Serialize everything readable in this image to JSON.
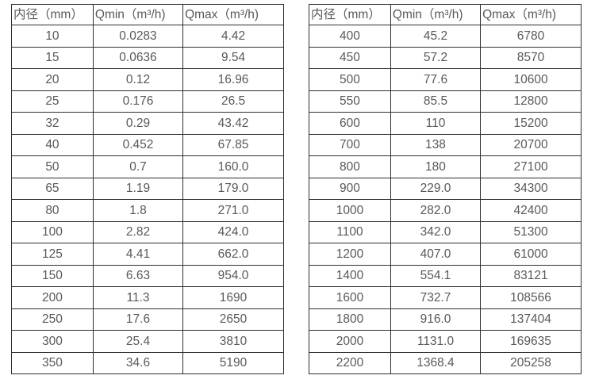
{
  "colors": {
    "background": "#ffffff",
    "border": "#2f2f2f",
    "text": "#595959"
  },
  "left_table": {
    "headers": {
      "diameter": "内径（mm）",
      "qmin": "Qmin（m³/h)",
      "qmax": "Qmax（m³/h)"
    },
    "rows": [
      [
        "10",
        "0.0283",
        "4.42"
      ],
      [
        "15",
        "0.0636",
        "9.54"
      ],
      [
        "20",
        "0.12",
        "16.96"
      ],
      [
        "25",
        "0.176",
        "26.5"
      ],
      [
        "32",
        "0.29",
        "43.42"
      ],
      [
        "40",
        "0.452",
        "67.85"
      ],
      [
        "50",
        "0.7",
        "160.0"
      ],
      [
        "65",
        "1.19",
        "179.0"
      ],
      [
        "80",
        "1.8",
        "271.0"
      ],
      [
        "100",
        "2.82",
        "424.0"
      ],
      [
        "125",
        "4.41",
        "662.0"
      ],
      [
        "150",
        "6.63",
        "954.0"
      ],
      [
        "200",
        "11.3",
        "1690"
      ],
      [
        "250",
        "17.6",
        "2650"
      ],
      [
        "300",
        "25.4",
        "3810"
      ],
      [
        "350",
        "34.6",
        "5190"
      ]
    ]
  },
  "right_table": {
    "headers": {
      "diameter": "内径（mm）",
      "qmin": "Qmin（m³/h)",
      "qmax": "Qmax（m³/h)"
    },
    "rows": [
      [
        "400",
        "45.2",
        "6780"
      ],
      [
        "450",
        "57.2",
        "8570"
      ],
      [
        "500",
        "77.6",
        "10600"
      ],
      [
        "550",
        "85.5",
        "12800"
      ],
      [
        "600",
        "110",
        "15200"
      ],
      [
        "700",
        "138",
        "20700"
      ],
      [
        "800",
        "180",
        "27100"
      ],
      [
        "900",
        "229.0",
        "34300"
      ],
      [
        "1000",
        "282.0",
        "42400"
      ],
      [
        "1100",
        "342.0",
        "51300"
      ],
      [
        "1200",
        "407.0",
        "61000"
      ],
      [
        "1400",
        "554.1",
        "83121"
      ],
      [
        "1600",
        "732.7",
        "108566"
      ],
      [
        "1800",
        "916.0",
        "137404"
      ],
      [
        "2000",
        "1131.0",
        "169635"
      ],
      [
        "2200",
        "1368.4",
        "205258"
      ]
    ]
  }
}
